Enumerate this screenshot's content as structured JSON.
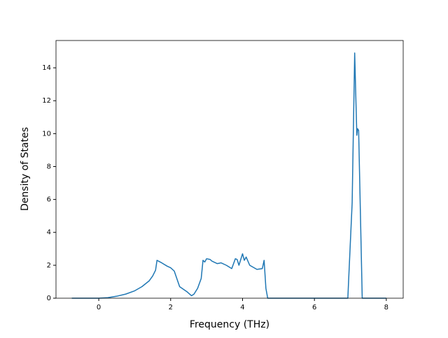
{
  "chart_data": {
    "type": "line",
    "x_label": "Frequency (THz)",
    "y_label": "Density of States",
    "series": [
      {
        "color": "#1f77b4",
        "x": [
          -0.75,
          0,
          0.25,
          0.5,
          0.75,
          1.0,
          1.2,
          1.4,
          1.5,
          1.58,
          1.62,
          1.75,
          1.9,
          2.0,
          2.1,
          2.25,
          2.45,
          2.58,
          2.65,
          2.75,
          2.85,
          2.9,
          2.95,
          3.0,
          3.1,
          3.15,
          3.3,
          3.4,
          3.55,
          3.7,
          3.8,
          3.85,
          3.9,
          4.0,
          4.05,
          4.1,
          4.2,
          4.4,
          4.55,
          4.6,
          4.65,
          4.7,
          6.93,
          6.95,
          7.05,
          7.12,
          7.18,
          7.2,
          7.23,
          7.33,
          8.0
        ],
        "values": [
          0,
          0,
          0.03,
          0.12,
          0.25,
          0.45,
          0.7,
          1.05,
          1.35,
          1.7,
          2.3,
          2.15,
          1.95,
          1.85,
          1.65,
          0.7,
          0.4,
          0.15,
          0.25,
          0.6,
          1.2,
          2.3,
          2.2,
          2.4,
          2.35,
          2.25,
          2.1,
          2.15,
          2.0,
          1.8,
          2.4,
          2.35,
          2.0,
          2.7,
          2.3,
          2.5,
          2.0,
          1.75,
          1.8,
          2.3,
          0.6,
          0,
          0,
          1.0,
          5.8,
          14.9,
          9.9,
          10.3,
          10.2,
          0,
          0
        ]
      }
    ],
    "xlim": [
      -1.19,
      8.47
    ],
    "xticks": [
      0,
      2,
      4,
      6,
      8
    ],
    "ylim": [
      0,
      15.66
    ],
    "yticks": [
      0,
      2,
      4,
      6,
      8,
      10,
      12,
      14
    ]
  }
}
